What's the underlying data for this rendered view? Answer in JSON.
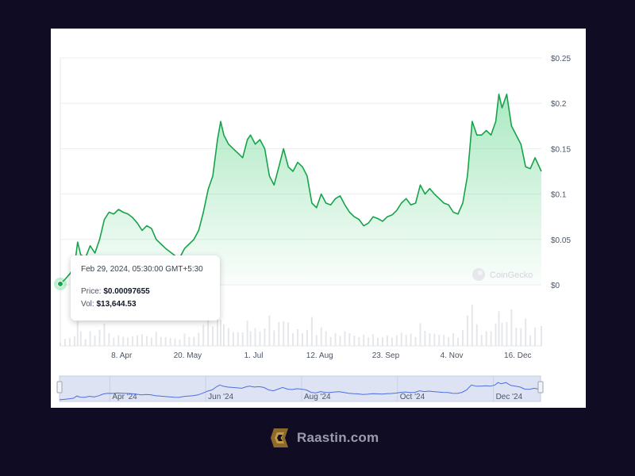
{
  "chart_data": {
    "type": "area",
    "y_ticks": [
      "$0.25",
      "$0.2",
      "$0.15",
      "$0.1",
      "$0.05",
      "$0"
    ],
    "y_tick_values": [
      0.25,
      0.2,
      0.15,
      0.1,
      0.05,
      0
    ],
    "ylim": [
      0,
      0.25
    ],
    "x_ticks": [
      "8. Apr",
      "20. May",
      "1. Jul",
      "12. Aug",
      "23. Sep",
      "4. Nov",
      "16. Dec"
    ],
    "x_tick_dates": [
      "2024-04-08",
      "2024-05-20",
      "2024-07-01",
      "2024-08-12",
      "2024-09-23",
      "2024-11-04",
      "2024-12-16"
    ],
    "xlim": [
      "2024-02-29",
      "2024-12-31"
    ],
    "grid": true,
    "line_color": "#16a34a",
    "fill_color": "#22c55e",
    "series": [
      {
        "points": [
          [
            "2024-02-29",
            0.001
          ],
          [
            "2024-03-03",
            0.006
          ],
          [
            "2024-03-06",
            0.012
          ],
          [
            "2024-03-09",
            0.02
          ],
          [
            "2024-03-11",
            0.047
          ],
          [
            "2024-03-13",
            0.033
          ],
          [
            "2024-03-16",
            0.03
          ],
          [
            "2024-03-19",
            0.043
          ],
          [
            "2024-03-22",
            0.035
          ],
          [
            "2024-03-25",
            0.05
          ],
          [
            "2024-03-28",
            0.072
          ],
          [
            "2024-03-31",
            0.08
          ],
          [
            "2024-04-03",
            0.078
          ],
          [
            "2024-04-06",
            0.083
          ],
          [
            "2024-04-09",
            0.08
          ],
          [
            "2024-04-12",
            0.078
          ],
          [
            "2024-04-15",
            0.074
          ],
          [
            "2024-04-18",
            0.068
          ],
          [
            "2024-04-21",
            0.06
          ],
          [
            "2024-04-24",
            0.065
          ],
          [
            "2024-04-27",
            0.062
          ],
          [
            "2024-04-30",
            0.05
          ],
          [
            "2024-05-03",
            0.045
          ],
          [
            "2024-05-06",
            0.04
          ],
          [
            "2024-05-09",
            0.036
          ],
          [
            "2024-05-12",
            0.032
          ],
          [
            "2024-05-15",
            0.03
          ],
          [
            "2024-05-18",
            0.04
          ],
          [
            "2024-05-21",
            0.045
          ],
          [
            "2024-05-24",
            0.05
          ],
          [
            "2024-05-27",
            0.06
          ],
          [
            "2024-05-30",
            0.08
          ],
          [
            "2024-06-02",
            0.105
          ],
          [
            "2024-06-05",
            0.12
          ],
          [
            "2024-06-08",
            0.16
          ],
          [
            "2024-06-10",
            0.18
          ],
          [
            "2024-06-12",
            0.165
          ],
          [
            "2024-06-15",
            0.155
          ],
          [
            "2024-06-18",
            0.15
          ],
          [
            "2024-06-21",
            0.145
          ],
          [
            "2024-06-24",
            0.14
          ],
          [
            "2024-06-27",
            0.16
          ],
          [
            "2024-06-29",
            0.165
          ],
          [
            "2024-07-02",
            0.155
          ],
          [
            "2024-07-05",
            0.16
          ],
          [
            "2024-07-08",
            0.15
          ],
          [
            "2024-07-11",
            0.12
          ],
          [
            "2024-07-14",
            0.11
          ],
          [
            "2024-07-17",
            0.13
          ],
          [
            "2024-07-20",
            0.15
          ],
          [
            "2024-07-23",
            0.13
          ],
          [
            "2024-07-26",
            0.125
          ],
          [
            "2024-07-29",
            0.135
          ],
          [
            "2024-08-01",
            0.13
          ],
          [
            "2024-08-04",
            0.12
          ],
          [
            "2024-08-07",
            0.09
          ],
          [
            "2024-08-10",
            0.085
          ],
          [
            "2024-08-13",
            0.1
          ],
          [
            "2024-08-16",
            0.09
          ],
          [
            "2024-08-19",
            0.088
          ],
          [
            "2024-08-22",
            0.095
          ],
          [
            "2024-08-25",
            0.098
          ],
          [
            "2024-08-28",
            0.088
          ],
          [
            "2024-08-31",
            0.08
          ],
          [
            "2024-09-03",
            0.075
          ],
          [
            "2024-09-06",
            0.072
          ],
          [
            "2024-09-09",
            0.065
          ],
          [
            "2024-09-12",
            0.068
          ],
          [
            "2024-09-15",
            0.075
          ],
          [
            "2024-09-18",
            0.073
          ],
          [
            "2024-09-21",
            0.07
          ],
          [
            "2024-09-24",
            0.075
          ],
          [
            "2024-09-27",
            0.077
          ],
          [
            "2024-09-30",
            0.082
          ],
          [
            "2024-10-03",
            0.09
          ],
          [
            "2024-10-06",
            0.095
          ],
          [
            "2024-10-09",
            0.088
          ],
          [
            "2024-10-12",
            0.09
          ],
          [
            "2024-10-15",
            0.11
          ],
          [
            "2024-10-18",
            0.1
          ],
          [
            "2024-10-21",
            0.106
          ],
          [
            "2024-10-24",
            0.1
          ],
          [
            "2024-10-27",
            0.095
          ],
          [
            "2024-10-30",
            0.09
          ],
          [
            "2024-11-02",
            0.088
          ],
          [
            "2024-11-05",
            0.08
          ],
          [
            "2024-11-08",
            0.078
          ],
          [
            "2024-11-11",
            0.09
          ],
          [
            "2024-11-14",
            0.12
          ],
          [
            "2024-11-17",
            0.18
          ],
          [
            "2024-11-20",
            0.165
          ],
          [
            "2024-11-23",
            0.165
          ],
          [
            "2024-11-26",
            0.17
          ],
          [
            "2024-11-29",
            0.165
          ],
          [
            "2024-12-02",
            0.18
          ],
          [
            "2024-12-04",
            0.21
          ],
          [
            "2024-12-06",
            0.195
          ],
          [
            "2024-12-09",
            0.21
          ],
          [
            "2024-12-12",
            0.175
          ],
          [
            "2024-12-15",
            0.165
          ],
          [
            "2024-12-18",
            0.155
          ],
          [
            "2024-12-21",
            0.13
          ],
          [
            "2024-12-24",
            0.128
          ],
          [
            "2024-12-27",
            0.14
          ],
          [
            "2024-12-31",
            0.125
          ]
        ]
      }
    ],
    "tooltip": {
      "date": "Feb 29, 2024, 05:30:00 GMT+5:30",
      "price_label": "Price:",
      "price_value": "$0.00097655",
      "vol_label": "Vol:",
      "vol_value": "$13,644.53"
    },
    "navigator": {
      "labels": [
        "Apr '24",
        "Jun '24",
        "Aug '24",
        "Oct '24",
        "Dec '24"
      ],
      "label_dates": [
        "2024-04-01",
        "2024-06-01",
        "2024-08-01",
        "2024-10-01",
        "2024-12-01"
      ]
    },
    "watermark": "CoinGecko"
  },
  "brand": {
    "text": "Raastin.com",
    "icon": "raastin-logo-icon"
  }
}
